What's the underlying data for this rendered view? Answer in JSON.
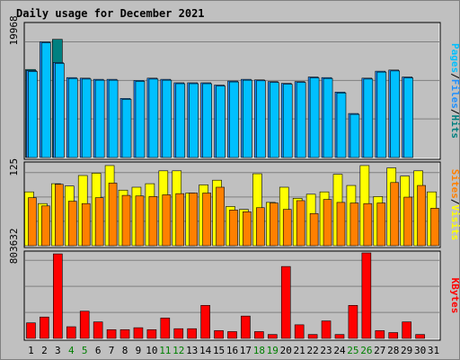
{
  "title": "Daily usage for December 2021",
  "colors": {
    "background": "#c0c0c0",
    "panel": "#c0c0c0",
    "title": "#0000ff",
    "pages": "#00c0ff",
    "files": "#1e90ff",
    "hits": "#008080",
    "sites": "#ff8000",
    "visits": "#ffff00",
    "kbytes": "#ff0000",
    "weekend": "#008000",
    "weekday": "#000000"
  },
  "right_labels": {
    "top": [
      "Pages",
      "/",
      "Files",
      "/",
      "Hits"
    ],
    "middle": [
      "Sites",
      "/",
      "Visits"
    ],
    "bottom": [
      "KBytes"
    ]
  },
  "chart_data": {
    "type": "bar",
    "categories": [
      "1",
      "2",
      "3",
      "4",
      "5",
      "6",
      "7",
      "8",
      "9",
      "10",
      "11",
      "12",
      "13",
      "14",
      "15",
      "16",
      "17",
      "18",
      "19",
      "20",
      "21",
      "22",
      "23",
      "24",
      "25",
      "26",
      "27",
      "28",
      "29",
      "30",
      "31"
    ],
    "weekend_days": [
      "4",
      "5",
      "11",
      "12",
      "18",
      "19",
      "25",
      "26"
    ],
    "panels": [
      {
        "id": "top",
        "ytick_label": "19968",
        "ymax": 23000,
        "series": [
          {
            "name": "Hits",
            "values": [
              15200,
              0,
              20400,
              0,
              0,
              0,
              0,
              0,
              0,
              0,
              0,
              0,
              0,
              0,
              0,
              0,
              0,
              0,
              0,
              0,
              0,
              0,
              0,
              0,
              0,
              0,
              0,
              0,
              0,
              0,
              0
            ]
          },
          {
            "name": "Files",
            "values": [
              15000,
              19968,
              16400,
              13800,
              13700,
              13500,
              13500,
              10200,
              13300,
              13700,
              13500,
              12900,
              12900,
              12900,
              12500,
              13200,
              13500,
              13400,
              13100,
              12800,
              13100,
              13900,
              13800,
              11300,
              7600,
              13700,
              14900,
              15100,
              13900,
              0,
              0
            ]
          },
          {
            "name": "Pages",
            "values": [
              15000,
              19968,
              16400,
              13800,
              13700,
              13500,
              13500,
              10200,
              13300,
              13700,
              13500,
              12900,
              12900,
              12900,
              12500,
              13200,
              13500,
              13400,
              13100,
              12800,
              13100,
              13900,
              13800,
              11300,
              7600,
              13700,
              14900,
              15100,
              13900,
              0,
              0
            ]
          }
        ]
      },
      {
        "id": "middle",
        "ytick_label": "125",
        "ymax": 140,
        "series": [
          {
            "name": "Visits",
            "values": [
              92,
              72,
              106,
              102,
              120,
              124,
              137,
              95,
              100,
              106,
              128,
              128,
              90,
              104,
              112,
              67,
              62,
              123,
              74,
              100,
              81,
              88,
              92,
              122,
              103,
              137,
              84,
              133,
              119,
              128,
              92
            ]
          },
          {
            "name": "Sites",
            "values": [
              82,
              68,
              105,
              76,
              72,
              82,
              107,
              86,
              85,
              84,
              87,
              89,
              90,
              90,
              100,
              61,
              58,
              65,
              73,
              62,
              77,
              55,
              79,
              74,
              73,
              72,
              73,
              108,
              83,
              103,
              64
            ]
          }
        ]
      },
      {
        "id": "bottom",
        "ytick_label": "803632",
        "ymax": 880000,
        "series": [
          {
            "name": "KBytes",
            "values": [
              160000,
              220000,
              870000,
              120000,
              280000,
              170000,
              90000,
              90000,
              110000,
              90000,
              210000,
              100000,
              100000,
              340000,
              80000,
              70000,
              230000,
              70000,
              40000,
              740000,
              140000,
              40000,
              180000,
              40000,
              340000,
              880000,
              80000,
              60000,
              170000,
              40000,
              0
            ]
          }
        ]
      }
    ]
  }
}
